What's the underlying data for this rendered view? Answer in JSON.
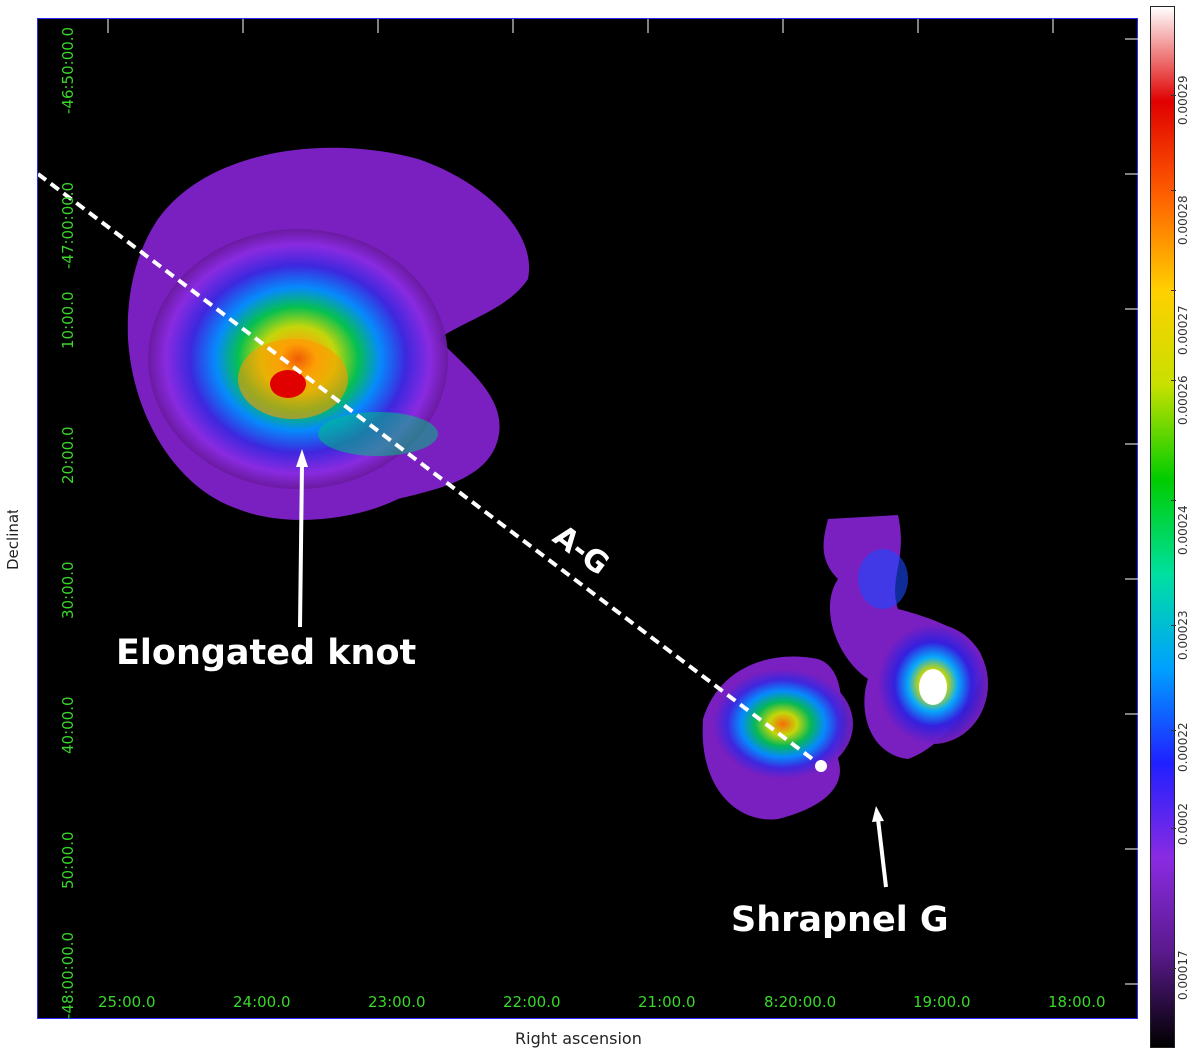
{
  "axes": {
    "xlabel": "Right ascension",
    "ylabel": "Declination",
    "ra_ticks": [
      "25:00.0",
      "24:00.0",
      "23:00.0",
      "22:00.0",
      "21:00.0",
      "8:20:00.0",
      "19:00.0",
      "18:00.0"
    ],
    "dec_ticks": [
      "-46:50:00.0",
      "-47:00:00.0",
      "10:00.0",
      "20:00.0",
      "30:00.0",
      "40:00.0",
      "50:00.0",
      "-48:00:00.0"
    ]
  },
  "annotations": {
    "line_label": "A-G",
    "knot_label": "Elongated knot",
    "shrapnel_label": "Shrapnel G"
  },
  "colorbar": {
    "ticks": [
      "0.00017",
      "0.0002",
      "0.00022",
      "0.00023",
      "0.00024",
      "0.00026",
      "0.00027",
      "0.00028",
      "0.00029"
    ],
    "colors": [
      "#000000",
      "#5a1a8c",
      "#8a2be2",
      "#2020ff",
      "#00a0ff",
      "#00e0a0",
      "#00cc00",
      "#c8e000",
      "#ffd000",
      "#ff6000",
      "#e00000",
      "#ffffff"
    ]
  }
}
